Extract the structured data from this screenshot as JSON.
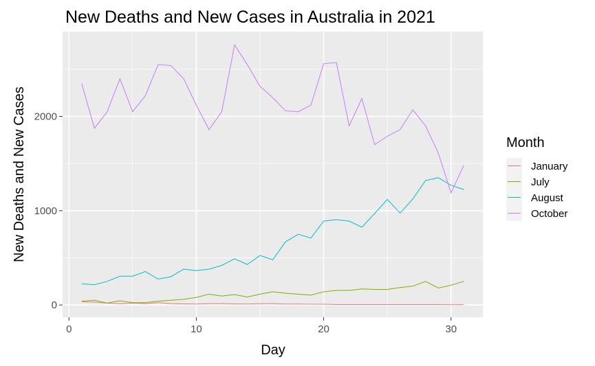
{
  "chart_data": {
    "type": "line",
    "title": "New Deaths and New Cases in Australia in 2021",
    "xlabel": "Day",
    "ylabel": "New Deaths and New Cases",
    "xlim": [
      -0.5,
      32.5
    ],
    "ylim": [
      -130,
      2900
    ],
    "xticks": [
      0,
      10,
      20,
      30
    ],
    "xtick_labels": [
      "0",
      "10",
      "20",
      "30"
    ],
    "yticks": [
      0,
      1000,
      2000
    ],
    "ytick_labels": [
      "0",
      "1000",
      "2000"
    ],
    "grid": true,
    "legend": {
      "title": "Month",
      "position": "right"
    },
    "x": [
      1,
      2,
      3,
      4,
      5,
      6,
      7,
      8,
      9,
      10,
      11,
      12,
      13,
      14,
      15,
      16,
      17,
      18,
      19,
      20,
      21,
      22,
      23,
      24,
      25,
      26,
      27,
      28,
      29,
      30,
      31
    ],
    "series": [
      {
        "name": "January",
        "color": "#F8766D",
        "values": [
          35,
          30,
          20,
          15,
          20,
          15,
          25,
          15,
          12,
          10,
          15,
          15,
          12,
          10,
          15,
          15,
          10,
          10,
          8,
          8,
          5,
          5,
          5,
          5,
          5,
          5,
          5,
          5,
          5,
          3,
          3
        ]
      },
      {
        "name": "July",
        "color": "#7CAE00",
        "values": [
          40,
          50,
          20,
          45,
          25,
          25,
          40,
          50,
          60,
          80,
          115,
          95,
          110,
          85,
          115,
          140,
          125,
          115,
          105,
          140,
          155,
          155,
          170,
          165,
          165,
          185,
          200,
          250,
          180,
          210,
          250
        ]
      },
      {
        "name": "August",
        "color": "#00BFC4",
        "values": [
          225,
          215,
          250,
          305,
          305,
          355,
          275,
          300,
          380,
          365,
          380,
          420,
          490,
          430,
          525,
          480,
          670,
          750,
          710,
          890,
          905,
          890,
          825,
          970,
          1120,
          975,
          1125,
          1320,
          1350,
          1270,
          1225
        ]
      },
      {
        "name": "October",
        "color": "#C77CFF",
        "values": [
          2350,
          1875,
          2050,
          2400,
          2050,
          2220,
          2550,
          2540,
          2400,
          2120,
          1860,
          2050,
          2760,
          2550,
          2320,
          2200,
          2060,
          2050,
          2120,
          2560,
          2570,
          1900,
          2190,
          1700,
          1790,
          1860,
          2070,
          1900,
          1610,
          1190,
          1480
        ]
      }
    ]
  }
}
